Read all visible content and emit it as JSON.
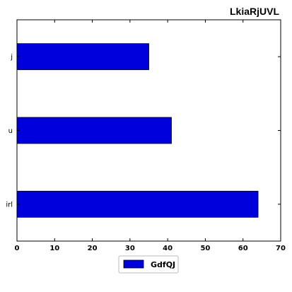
{
  "chart_data": {
    "type": "bar",
    "orientation": "horizontal",
    "title": "LkiaRjUVL",
    "categories": [
      "irl",
      "u",
      "j"
    ],
    "series": [
      {
        "name": "GdfQJ",
        "values": [
          64,
          41,
          35
        ],
        "color": "#0000dd"
      }
    ],
    "xlim": [
      0,
      70
    ],
    "xticks": [
      0,
      10,
      20,
      30,
      40,
      50,
      60,
      70
    ],
    "xlabel": "",
    "ylabel": "",
    "grid": false,
    "legend_position": "bottom-center"
  }
}
